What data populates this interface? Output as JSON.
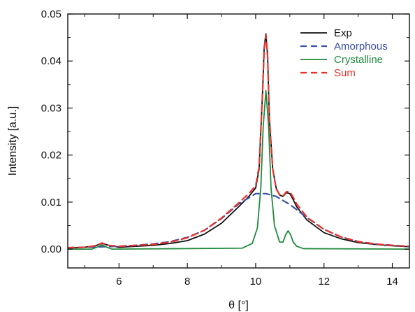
{
  "chart_data": {
    "type": "line",
    "title": "",
    "xlabel": "θ [°]",
    "ylabel": "Intensity [a.u.]",
    "xlim": [
      4.5,
      14.5
    ],
    "ylim": [
      -0.004,
      0.05
    ],
    "xticks": [
      6,
      8,
      10,
      12,
      14
    ],
    "xtick_labels": [
      "6",
      "8",
      "10",
      "12",
      "14"
    ],
    "yticks": [
      0.0,
      0.01,
      0.02,
      0.03,
      0.04,
      0.05
    ],
    "ytick_labels": [
      "0.00",
      "0.01",
      "0.02",
      "0.03",
      "0.04",
      "0.05"
    ],
    "grid": false,
    "legend_position": "top-right",
    "series": [
      {
        "name": "Exp",
        "color": "#111111",
        "dash": "solid",
        "x": [
          4.5,
          5.0,
          5.3,
          5.5,
          5.7,
          6.0,
          6.5,
          7.0,
          7.5,
          8.0,
          8.5,
          9.0,
          9.5,
          9.8,
          10.0,
          10.1,
          10.2,
          10.25,
          10.3,
          10.35,
          10.4,
          10.5,
          10.6,
          10.7,
          10.8,
          10.9,
          11.0,
          11.1,
          11.2,
          11.5,
          12.0,
          12.5,
          13.0,
          13.5,
          14.0,
          14.5
        ],
        "y": [
          0.0002,
          0.0004,
          0.0007,
          0.0012,
          0.0008,
          0.0004,
          0.0006,
          0.0008,
          0.0012,
          0.0018,
          0.0032,
          0.0055,
          0.009,
          0.0112,
          0.013,
          0.017,
          0.033,
          0.043,
          0.0458,
          0.041,
          0.028,
          0.017,
          0.013,
          0.0115,
          0.0112,
          0.012,
          0.0118,
          0.0105,
          0.009,
          0.0062,
          0.0035,
          0.0022,
          0.0014,
          0.001,
          0.0007,
          0.0005
        ]
      },
      {
        "name": "Amorphous",
        "color": "#3b4fa8",
        "dash": "dashed",
        "x": [
          4.5,
          5.0,
          5.5,
          6.0,
          6.5,
          7.0,
          7.5,
          8.0,
          8.5,
          9.0,
          9.5,
          10.0,
          10.3,
          10.6,
          11.0,
          11.5,
          12.0,
          12.5,
          13.0,
          13.5,
          14.0,
          14.5
        ],
        "y": [
          0.0003,
          0.0004,
          0.0005,
          0.0006,
          0.0008,
          0.0011,
          0.0016,
          0.0025,
          0.004,
          0.0065,
          0.0096,
          0.0118,
          0.0118,
          0.0112,
          0.0095,
          0.0067,
          0.0042,
          0.0026,
          0.0016,
          0.0011,
          0.0008,
          0.0006
        ]
      },
      {
        "name": "Crystalline",
        "color": "#1f8a3b",
        "dash": "solid",
        "x": [
          4.5,
          5.2,
          5.35,
          5.5,
          5.65,
          5.8,
          9.6,
          9.9,
          10.05,
          10.15,
          10.22,
          10.3,
          10.38,
          10.45,
          10.55,
          10.7,
          10.8,
          10.88,
          10.95,
          11.02,
          11.1,
          11.2,
          11.4,
          14.5
        ],
        "y": [
          0.0,
          0.0,
          0.0004,
          0.0009,
          0.0004,
          0.0,
          0.0002,
          0.0012,
          0.0045,
          0.013,
          0.026,
          0.0337,
          0.026,
          0.013,
          0.005,
          0.0015,
          0.0015,
          0.0031,
          0.0039,
          0.0031,
          0.0015,
          0.0006,
          0.0001,
          0.0
        ]
      },
      {
        "name": "Sum",
        "color": "#e8322b",
        "dash": "dashed",
        "x": [
          4.5,
          5.0,
          5.3,
          5.5,
          5.7,
          6.0,
          6.5,
          7.0,
          7.5,
          8.0,
          8.5,
          9.0,
          9.5,
          9.8,
          10.0,
          10.1,
          10.2,
          10.25,
          10.3,
          10.35,
          10.4,
          10.5,
          10.6,
          10.7,
          10.8,
          10.9,
          11.0,
          11.1,
          11.2,
          11.5,
          12.0,
          12.5,
          13.0,
          13.5,
          14.0,
          14.5
        ],
        "y": [
          0.0003,
          0.0004,
          0.0007,
          0.0013,
          0.0008,
          0.0006,
          0.0008,
          0.001,
          0.0015,
          0.0024,
          0.004,
          0.0066,
          0.0098,
          0.0118,
          0.0135,
          0.0175,
          0.033,
          0.0425,
          0.0455,
          0.041,
          0.028,
          0.017,
          0.0128,
          0.0116,
          0.0113,
          0.0122,
          0.0122,
          0.011,
          0.0096,
          0.0068,
          0.0042,
          0.0026,
          0.0016,
          0.0011,
          0.0008,
          0.0006
        ]
      }
    ]
  }
}
